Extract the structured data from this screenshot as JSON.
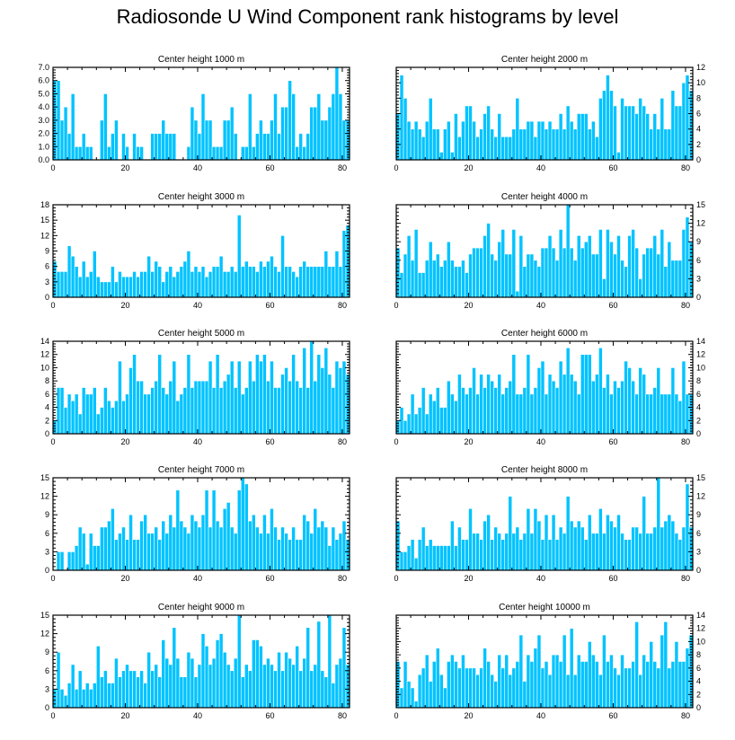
{
  "title": "Radiosonde U Wind Component rank histograms by level",
  "colors": {
    "bar": "#00c3ff",
    "bar_edge": "#ffffff",
    "axis": "#000000"
  },
  "chart_data": [
    {
      "type": "bar",
      "title": "Center height 1000 m",
      "xlim": [
        0,
        82
      ],
      "ylim": [
        0,
        7.0
      ],
      "xticks": [
        0,
        20,
        40,
        60,
        80
      ],
      "xtick_labels": [
        "0",
        "20",
        "40",
        "60",
        "80"
      ],
      "yticks": [
        0,
        1,
        2,
        3,
        4,
        5,
        6,
        7
      ],
      "ytick_labels": [
        "0.0",
        "1.0",
        "2.0",
        "3.0",
        "4.0",
        "5.0",
        "6.0",
        "7.0"
      ],
      "ytick_side": "left",
      "values": [
        6,
        6,
        3,
        4,
        2,
        5,
        1,
        1,
        2,
        1,
        1,
        0,
        0,
        3,
        5,
        1,
        2,
        3,
        0,
        2,
        1,
        0,
        2,
        1,
        1,
        0,
        0,
        2,
        2,
        2,
        3,
        2,
        2,
        2,
        0,
        0,
        0,
        1,
        4,
        3,
        2,
        5,
        3,
        3,
        1,
        1,
        1,
        3,
        3,
        4,
        2,
        0,
        1,
        1,
        5,
        1,
        2,
        3,
        2,
        2,
        3,
        5,
        2,
        4,
        4,
        6,
        5,
        1,
        2,
        1,
        2,
        4,
        4,
        5,
        3,
        3,
        4,
        5,
        7,
        5,
        3,
        3
      ]
    },
    {
      "type": "bar",
      "title": "Center height 2000 m",
      "xlim": [
        0,
        82
      ],
      "ylim": [
        0,
        12
      ],
      "xticks": [
        0,
        20,
        40,
        60,
        80
      ],
      "xtick_labels": [
        "0",
        "20",
        "40",
        "60",
        "80"
      ],
      "yticks": [
        0,
        2,
        4,
        6,
        8,
        10,
        12
      ],
      "ytick_labels": [
        "0",
        "2",
        "4",
        "6",
        "8",
        "10",
        "12"
      ],
      "ytick_side": "right",
      "values": [
        6,
        11,
        8,
        5,
        4,
        5,
        4,
        3,
        5,
        8,
        4,
        4,
        1,
        4,
        5,
        1,
        6,
        3,
        5,
        7,
        7,
        5,
        3,
        4,
        6,
        7,
        4,
        3,
        6,
        3,
        3,
        3,
        4,
        8,
        4,
        4,
        5,
        5,
        3,
        5,
        5,
        4,
        5,
        4,
        4,
        6,
        4,
        7,
        5,
        4,
        6,
        6,
        6,
        4,
        5,
        3,
        8,
        9,
        11,
        9,
        7,
        1,
        8,
        7,
        7,
        7,
        6,
        8,
        7,
        6,
        4,
        6,
        4,
        8,
        4,
        4,
        9,
        7,
        7,
        10,
        11,
        9
      ]
    },
    {
      "type": "bar",
      "title": "Center height 3000 m",
      "xlim": [
        0,
        82
      ],
      "ylim": [
        0,
        18
      ],
      "xticks": [
        0,
        20,
        40,
        60,
        80
      ],
      "xtick_labels": [
        "0",
        "20",
        "40",
        "60",
        "80"
      ],
      "yticks": [
        0,
        3,
        6,
        9,
        12,
        15,
        18
      ],
      "ytick_labels": [
        "0",
        "3",
        "6",
        "9",
        "12",
        "15",
        "18"
      ],
      "ytick_side": "left",
      "values": [
        7,
        5,
        5,
        5,
        10,
        8,
        6,
        4,
        7,
        4,
        5,
        9,
        4,
        3,
        3,
        3,
        6,
        3,
        5,
        4,
        4,
        4,
        5,
        4,
        5,
        5,
        8,
        5,
        7,
        6,
        3,
        5,
        6,
        4,
        5,
        6,
        7,
        9,
        5,
        6,
        5,
        6,
        4,
        5,
        6,
        6,
        8,
        5,
        5,
        6,
        5,
        16,
        6,
        7,
        6,
        6,
        5,
        7,
        6,
        7,
        8,
        6,
        5,
        12,
        6,
        6,
        5,
        4,
        6,
        7,
        6,
        6,
        6,
        6,
        6,
        9,
        6,
        6,
        9,
        6,
        13,
        14
      ]
    },
    {
      "type": "bar",
      "title": "Center height 4000 m",
      "xlim": [
        0,
        82
      ],
      "ylim": [
        0,
        15
      ],
      "xticks": [
        0,
        20,
        40,
        60,
        80
      ],
      "xtick_labels": [
        "0",
        "20",
        "40",
        "60",
        "80"
      ],
      "yticks": [
        0,
        3,
        6,
        9,
        12,
        15
      ],
      "ytick_labels": [
        "0",
        "3",
        "6",
        "9",
        "12",
        "15"
      ],
      "ytick_side": "right",
      "values": [
        8,
        4,
        7,
        10,
        6,
        11,
        4,
        4,
        6,
        9,
        6,
        7,
        5,
        6,
        9,
        6,
        5,
        5,
        6,
        4,
        7,
        8,
        8,
        8,
        10,
        12,
        7,
        6,
        9,
        11,
        7,
        7,
        11,
        1,
        10,
        5,
        7,
        7,
        6,
        5,
        8,
        8,
        10,
        8,
        6,
        11,
        8,
        15,
        8,
        6,
        10,
        8,
        9,
        10,
        7,
        7,
        11,
        3,
        11,
        9,
        7,
        10,
        6,
        5,
        10,
        11,
        8,
        3,
        7,
        8,
        8,
        10,
        7,
        11,
        5,
        9,
        6,
        6,
        6,
        11,
        13,
        9
      ]
    },
    {
      "type": "bar",
      "title": "Center height 5000 m",
      "xlim": [
        0,
        82
      ],
      "ylim": [
        0,
        14
      ],
      "xticks": [
        0,
        20,
        40,
        60,
        80
      ],
      "xtick_labels": [
        "0",
        "20",
        "40",
        "60",
        "80"
      ],
      "yticks": [
        0,
        2,
        4,
        6,
        8,
        10,
        12,
        14
      ],
      "ytick_labels": [
        "0",
        "2",
        "4",
        "6",
        "8",
        "10",
        "12",
        "14"
      ],
      "ytick_side": "left",
      "values": [
        2,
        7,
        7,
        4,
        6,
        5,
        6,
        3,
        7,
        6,
        6,
        7,
        3,
        4,
        7,
        5,
        4,
        5,
        11,
        5,
        6,
        10,
        12,
        8,
        8,
        6,
        6,
        7,
        8,
        12,
        7,
        6,
        8,
        11,
        5,
        6,
        7,
        12,
        7,
        8,
        8,
        8,
        8,
        11,
        7,
        12,
        7,
        8,
        9,
        11,
        7,
        11,
        6,
        7,
        11,
        8,
        12,
        11,
        12,
        8,
        11,
        7,
        7,
        9,
        10,
        8,
        12,
        8,
        7,
        13,
        7,
        14,
        8,
        12,
        10,
        13,
        9,
        7,
        11,
        10,
        11,
        9
      ]
    },
    {
      "type": "bar",
      "title": "Center height 6000 m",
      "xlim": [
        0,
        82
      ],
      "ylim": [
        0,
        14
      ],
      "xticks": [
        0,
        20,
        40,
        60,
        80
      ],
      "xtick_labels": [
        "0",
        "20",
        "40",
        "60",
        "80"
      ],
      "yticks": [
        0,
        2,
        4,
        6,
        8,
        10,
        12,
        14
      ],
      "ytick_labels": [
        "0",
        "2",
        "4",
        "6",
        "8",
        "10",
        "12",
        "14"
      ],
      "ytick_side": "right",
      "values": [
        2,
        4,
        2,
        3,
        6,
        3,
        4,
        7,
        3,
        6,
        5,
        7,
        4,
        4,
        8,
        6,
        5,
        9,
        7,
        6,
        7,
        10,
        6,
        9,
        7,
        9,
        8,
        7,
        9,
        6,
        7,
        8,
        12,
        6,
        6,
        7,
        12,
        6,
        7,
        10,
        11,
        6,
        9,
        8,
        7,
        11,
        9,
        13,
        9,
        8,
        6,
        12,
        12,
        12,
        8,
        9,
        13,
        7,
        9,
        6,
        8,
        7,
        8,
        11,
        10,
        8,
        6,
        10,
        9,
        6,
        6,
        7,
        10,
        6,
        6,
        6,
        10,
        6,
        5,
        11,
        6,
        6
      ]
    },
    {
      "type": "bar",
      "title": "Center height 7000 m",
      "xlim": [
        0,
        82
      ],
      "ylim": [
        0,
        15
      ],
      "xticks": [
        0,
        20,
        40,
        60,
        80
      ],
      "xtick_labels": [
        "0",
        "20",
        "40",
        "60",
        "80"
      ],
      "yticks": [
        0,
        3,
        6,
        9,
        12,
        15
      ],
      "ytick_labels": [
        "0",
        "3",
        "6",
        "9",
        "12",
        "15"
      ],
      "ytick_side": "left",
      "values": [
        0,
        3,
        3,
        0,
        3,
        3,
        4,
        7,
        6,
        1,
        6,
        4,
        4,
        7,
        7,
        8,
        10,
        5,
        6,
        7,
        5,
        9,
        5,
        5,
        8,
        9,
        6,
        6,
        7,
        5,
        8,
        6,
        9,
        7,
        13,
        8,
        7,
        6,
        9,
        8,
        7,
        9,
        13,
        7,
        13,
        8,
        7,
        10,
        11,
        7,
        6,
        13,
        15,
        14,
        8,
        9,
        7,
        6,
        9,
        6,
        10,
        7,
        5,
        7,
        6,
        5,
        7,
        5,
        5,
        9,
        8,
        6,
        10,
        7,
        8,
        7,
        4,
        7,
        5,
        6,
        8,
        5
      ]
    },
    {
      "type": "bar",
      "title": "Center height 8000 m",
      "xlim": [
        0,
        82
      ],
      "ylim": [
        0,
        15
      ],
      "xticks": [
        0,
        20,
        40,
        60,
        80
      ],
      "xtick_labels": [
        "0",
        "20",
        "40",
        "60",
        "80"
      ],
      "yticks": [
        0,
        3,
        6,
        9,
        12,
        15
      ],
      "ytick_labels": [
        "0",
        "3",
        "6",
        "9",
        "12",
        "15"
      ],
      "ytick_side": "right",
      "values": [
        8,
        3,
        3,
        4,
        5,
        2,
        5,
        7,
        4,
        5,
        4,
        4,
        4,
        4,
        4,
        8,
        4,
        7,
        5,
        5,
        10,
        6,
        6,
        5,
        8,
        9,
        5,
        7,
        6,
        5,
        6,
        12,
        6,
        7,
        5,
        6,
        10,
        6,
        10,
        8,
        5,
        9,
        5,
        9,
        5,
        7,
        6,
        12,
        8,
        7,
        8,
        7,
        5,
        9,
        6,
        6,
        10,
        6,
        9,
        8,
        7,
        9,
        6,
        5,
        5,
        7,
        7,
        6,
        12,
        6,
        6,
        7,
        15,
        7,
        8,
        9,
        8,
        6,
        5,
        7,
        14,
        7
      ]
    },
    {
      "type": "bar",
      "title": "Center height 9000 m",
      "xlim": [
        0,
        82
      ],
      "ylim": [
        0,
        15
      ],
      "xticks": [
        0,
        20,
        40,
        60,
        80
      ],
      "xtick_labels": [
        "0",
        "20",
        "40",
        "60",
        "80"
      ],
      "yticks": [
        0,
        3,
        6,
        9,
        12,
        15
      ],
      "ytick_labels": [
        "0",
        "3",
        "6",
        "9",
        "12",
        "15"
      ],
      "ytick_side": "left",
      "values": [
        3,
        9,
        3,
        2,
        4,
        7,
        3,
        6,
        3,
        4,
        3,
        4,
        10,
        5,
        6,
        4,
        4,
        8,
        5,
        6,
        7,
        6,
        6,
        5,
        6,
        4,
        9,
        6,
        7,
        5,
        11,
        8,
        7,
        13,
        8,
        5,
        5,
        9,
        8,
        5,
        7,
        12,
        10,
        7,
        8,
        11,
        12,
        9,
        7,
        6,
        8,
        15,
        5,
        7,
        6,
        11,
        11,
        10,
        7,
        8,
        7,
        6,
        9,
        6,
        9,
        8,
        7,
        10,
        6,
        8,
        13,
        6,
        7,
        14,
        6,
        5,
        15,
        4,
        7,
        8,
        13,
        7
      ]
    },
    {
      "type": "bar",
      "title": "Center height 10000 m",
      "xlim": [
        0,
        82
      ],
      "ylim": [
        0,
        14
      ],
      "xticks": [
        0,
        20,
        40,
        60,
        80
      ],
      "xtick_labels": [
        "0",
        "20",
        "40",
        "60",
        "80"
      ],
      "yticks": [
        0,
        2,
        4,
        6,
        8,
        10,
        12,
        14
      ],
      "ytick_labels": [
        "0",
        "2",
        "4",
        "6",
        "8",
        "10",
        "12",
        "14"
      ],
      "ytick_side": "right",
      "values": [
        7,
        3,
        7,
        4,
        3,
        1,
        5,
        6,
        8,
        4,
        7,
        9,
        5,
        3,
        7,
        8,
        7,
        6,
        8,
        6,
        6,
        6,
        5,
        6,
        9,
        7,
        5,
        4,
        8,
        6,
        8,
        5,
        6,
        7,
        11,
        4,
        8,
        7,
        9,
        11,
        6,
        7,
        5,
        8,
        8,
        7,
        11,
        5,
        12,
        5,
        8,
        7,
        7,
        10,
        8,
        7,
        5,
        11,
        7,
        8,
        6,
        5,
        8,
        6,
        6,
        7,
        13,
        5,
        8,
        7,
        10,
        7,
        6,
        11,
        13,
        6,
        7,
        10,
        7,
        7,
        9,
        11
      ]
    }
  ]
}
